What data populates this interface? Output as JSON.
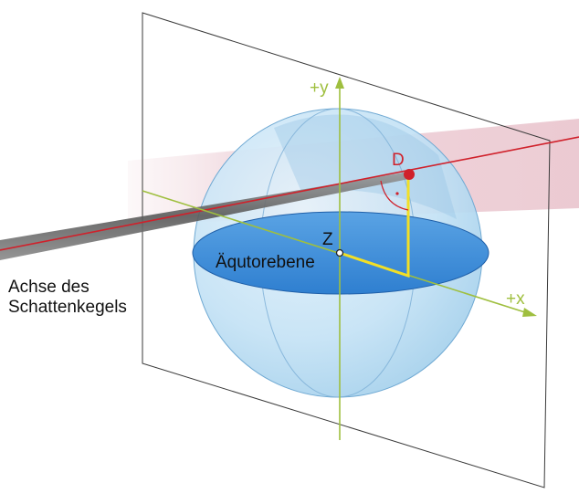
{
  "labels": {
    "y_axis": "+y",
    "x_axis": "+x",
    "center": "Z",
    "point_d": "D",
    "equator": "Äqutorebene",
    "shadow_axis_line1": "Achse des",
    "shadow_axis_line2": "Schattenkegels"
  },
  "colors": {
    "sphere": "#bfe0f4",
    "equator_plane": "#3d8ed8",
    "axes": "#9fbf3f",
    "shadow_axis": "#d0212b",
    "shadow_band": "#e6b9c3",
    "marker": "#f2df26",
    "frame": "#333333"
  }
}
